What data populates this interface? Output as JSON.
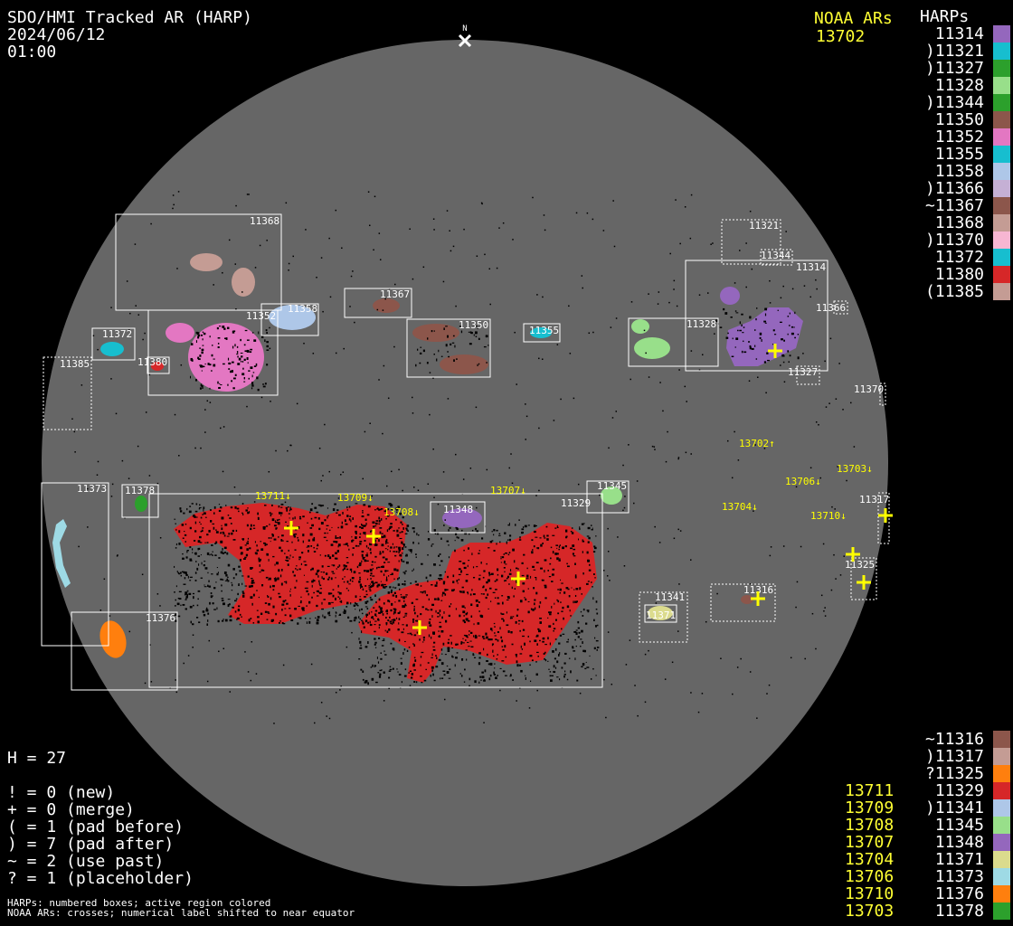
{
  "header": {
    "title": "SDO/HMI Tracked AR (HARP)",
    "date": "2024/06/12",
    "time": "01:00"
  },
  "north_label": "N",
  "noaa_header": "NOAA ARs",
  "harps_header": "HARPs",
  "noaa_top": [
    "13702"
  ],
  "harps_top": [
    {
      "label": " 11314",
      "color": "#9467bd"
    },
    {
      "label": ")11321",
      "color": "#17becf"
    },
    {
      "label": ")11327",
      "color": "#2ca02c"
    },
    {
      "label": " 11328",
      "color": "#98df8a"
    },
    {
      "label": ")11344",
      "color": "#2ca02c"
    },
    {
      "label": " 11350",
      "color": "#8c564b"
    },
    {
      "label": " 11352",
      "color": "#e377c2"
    },
    {
      "label": " 11355",
      "color": "#17becf"
    },
    {
      "label": " 11358",
      "color": "#aec7e8"
    },
    {
      "label": ")11366",
      "color": "#c5b0d5"
    },
    {
      "label": "~11367",
      "color": "#8c564b"
    },
    {
      "label": " 11368",
      "color": "#c49c94"
    },
    {
      "label": ")11370",
      "color": "#f7b6d2"
    },
    {
      "label": " 11372",
      "color": "#17becf"
    },
    {
      "label": " 11380",
      "color": "#d62728"
    },
    {
      "label": "(11385",
      "color": "#c49c94"
    }
  ],
  "harps_bottom": [
    {
      "label": "~11316",
      "color": "#8c564b",
      "noaa": ""
    },
    {
      "label": ")11317",
      "color": "#c49c94",
      "noaa": ""
    },
    {
      "label": "?11325",
      "color": "#ff7f0e",
      "noaa": ""
    },
    {
      "label": " 11329",
      "color": "#d62728",
      "noaa": "13711"
    },
    {
      "label": ")11341",
      "color": "#aec7e8",
      "noaa": "13709"
    },
    {
      "label": " 11345",
      "color": "#98df8a",
      "noaa": "13708"
    },
    {
      "label": " 11348",
      "color": "#9467bd",
      "noaa": "13707"
    },
    {
      "label": " 11371",
      "color": "#dbdb8d",
      "noaa": "13704"
    },
    {
      "label": " 11373",
      "color": "#9edae5",
      "noaa": "13706"
    },
    {
      "label": " 11376",
      "color": "#ff7f0e",
      "noaa": "13710"
    },
    {
      "label": " 11378",
      "color": "#2ca02c",
      "noaa": "13703"
    }
  ],
  "stats": {
    "h": "H = 27",
    "lines": [
      "! = 0 (new)",
      "+ = 0 (merge)",
      "( = 1 (pad before)",
      ") = 7 (pad after)",
      "~ = 2 (use past)",
      "? = 1 (placeholder)"
    ]
  },
  "footer": [
    "HARPs: numbered boxes; active region colored",
    "NOAA ARs: crosses; numerical label shifted to near equator"
  ],
  "disk_boxes": [
    "11368",
    "11352",
    "11358",
    "11372",
    "11380",
    "11385",
    "11367",
    "11350",
    "11355",
    "11328",
    "11321",
    "11344",
    "11314",
    "11366",
    "11327",
    "11370",
    "11373",
    "11378",
    "11329",
    "11345",
    "11348",
    "11376",
    "11341",
    "11371",
    "11316",
    "11317",
    "11325"
  ],
  "noaa_labels": [
    "13711↓",
    "13709↓",
    "13708↓",
    "13707↓",
    "13704↓",
    "13702↑",
    "13706↓",
    "13710↓",
    "13703↓"
  ],
  "colors": {
    "disk": "#666666",
    "background": "#000000",
    "noaa": "#ffff00",
    "box": "#ffffff"
  }
}
